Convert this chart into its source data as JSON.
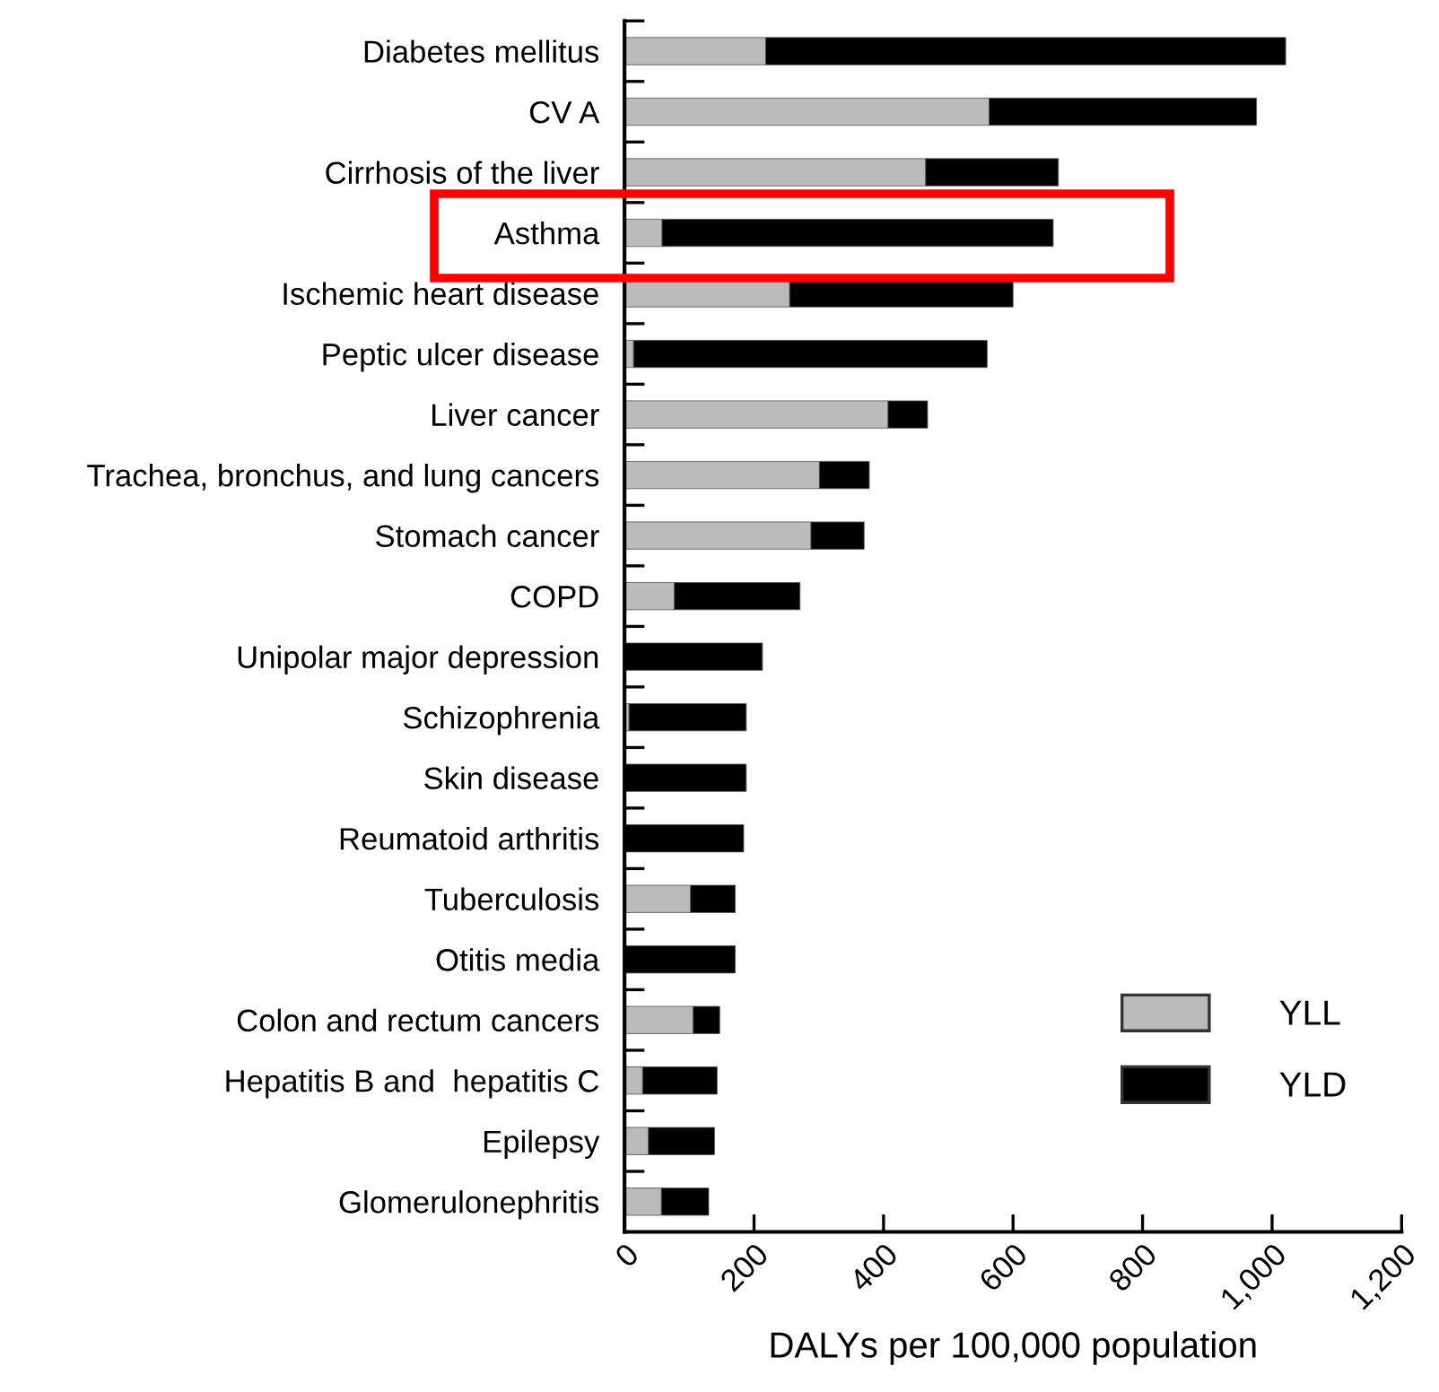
{
  "chart_data": {
    "type": "bar",
    "orientation": "horizontal",
    "stacked": true,
    "xlabel": "DALYs per 100,000 population",
    "categories": [
      "Diabetes mellitus",
      "CV A",
      "Cirrhosis of the liver",
      "Asthma",
      "Ischemic heart disease",
      "Peptic ulcer disease",
      "Liver cancer",
      "Trachea, bronchus, and lung cancers",
      "Stomach cancer",
      "COPD",
      "Unipolar major depression",
      "Schizophrenia",
      "Skin disease",
      "Reumatoid arthritis",
      "Tuberculosis",
      "Otitis media",
      "Colon and rectum cancers",
      "Hepatitis B and  hepatitis C",
      "Epilepsy",
      "Glomerulonephritis"
    ],
    "series": [
      {
        "name": "YLL",
        "color": "#bbbbbb",
        "values": [
          218,
          563,
          465,
          58,
          255,
          14,
          407,
          301,
          288,
          77,
          0,
          7,
          0,
          0,
          102,
          0,
          106,
          28,
          37,
          57
        ]
      },
      {
        "name": "YLD",
        "color": "#000000",
        "values": [
          803,
          413,
          205,
          604,
          345,
          546,
          61,
          77,
          82,
          194,
          213,
          181,
          188,
          184,
          69,
          171,
          41,
          115,
          102,
          73
        ]
      }
    ],
    "xlim": [
      0,
      1200
    ],
    "xticks": [
      0,
      200,
      400,
      600,
      800,
      {
        "value": 1000,
        "label": "1,000"
      },
      {
        "value": 1200,
        "label": "1,200"
      }
    ],
    "legend": "bottom right",
    "grid": false
  }
}
